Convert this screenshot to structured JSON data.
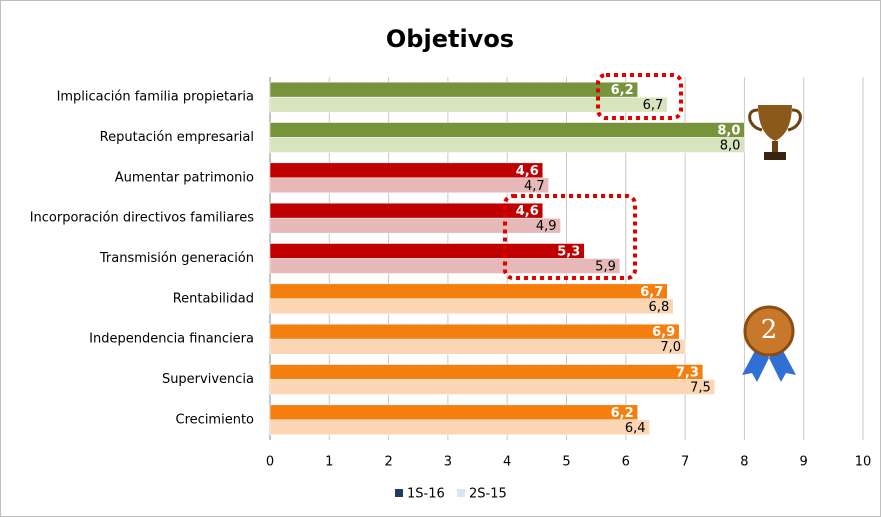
{
  "chart_data": {
    "type": "hbar",
    "title": "Objetivos",
    "categories": [
      "Implicación familia propietaria",
      "Reputación empresarial",
      "Aumentar patrimonio",
      "Incorporación directivos familiares",
      "Transmisión generación",
      "Rentabilidad",
      "Independencia financiera",
      "Supervivencia",
      "Crecimiento"
    ],
    "series": [
      {
        "name": "1S-16",
        "color": "#1f3864",
        "bar_colors": [
          "#77933c",
          "#77933c",
          "#c00000",
          "#c00000",
          "#c00000",
          "#f47f0e",
          "#f47f0e",
          "#f47f0e",
          "#f47f0e"
        ],
        "values": [
          6.2,
          8.0,
          4.6,
          4.6,
          5.3,
          6.7,
          6.9,
          7.3,
          6.2
        ],
        "value_labels": [
          "6,2",
          "8,0",
          "4,6",
          "4,6",
          "5,3",
          "6,7",
          "6,9",
          "7,3",
          "6,2"
        ]
      },
      {
        "name": "2S-15",
        "color": "#dce6f2",
        "bar_colors": [
          "#d7e4bd",
          "#d7e4bd",
          "#e6b9b8",
          "#e6b9b8",
          "#e6b9b8",
          "#fcd5b4",
          "#fcd5b4",
          "#fcd5b4",
          "#fcd5b4"
        ],
        "values": [
          6.7,
          8.0,
          4.7,
          4.9,
          5.9,
          6.8,
          7.0,
          7.5,
          6.4
        ],
        "value_labels": [
          "6,7",
          "8,0",
          "4,7",
          "4,9",
          "5,9",
          "6,8",
          "7,0",
          "7,5",
          "6,4"
        ]
      }
    ],
    "xlim": [
      0,
      10
    ],
    "xticks": [
      0,
      1,
      2,
      3,
      4,
      5,
      6,
      7,
      8,
      9,
      10
    ],
    "grid": true
  }
}
